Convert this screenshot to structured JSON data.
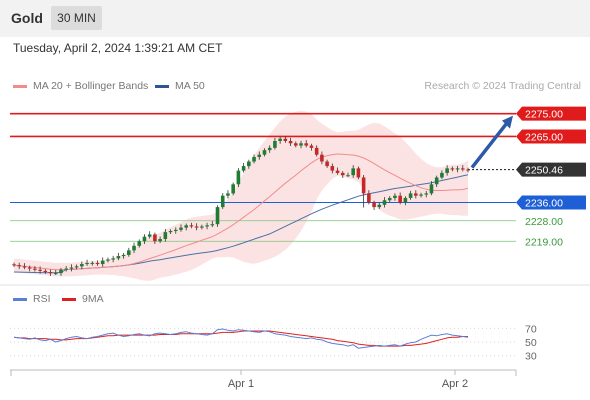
{
  "header": {
    "symbol": "Gold",
    "timeframe": "30 MIN"
  },
  "datetime": "Tuesday, April 2, 2024 1:39:21 AM CET",
  "legend": [
    {
      "label": "MA 20 + Bollinger Bands",
      "color": "#f08c8c"
    },
    {
      "label": "MA 50",
      "color": "#2f5597"
    }
  ],
  "credit": "Research © 2024 Trading Central",
  "rsi_legend": [
    {
      "label": "RSI",
      "color": "#5b7fd6"
    },
    {
      "label": "9MA",
      "color": "#e02020"
    }
  ],
  "x_axis": {
    "labels": [
      "Apr 1",
      "Apr 2"
    ]
  },
  "chart_data": [
    {
      "type": "line",
      "title": "Gold 30 MIN",
      "ylim": [
        2202,
        2281
      ],
      "levels": [
        {
          "value": 2275.0,
          "label": "2275.00",
          "color": "#e01b1b",
          "kind": "resistance"
        },
        {
          "value": 2265.0,
          "label": "2265.00",
          "color": "#e01b1b",
          "kind": "resistance"
        },
        {
          "value": 2250.46,
          "label": "2250.46",
          "color": "#333333",
          "kind": "last price"
        },
        {
          "value": 2236.0,
          "label": "2236.00",
          "color": "#1f5fd6",
          "kind": "pivot"
        },
        {
          "value": 2228.0,
          "label": "2228.00",
          "color": "#3a9a3a",
          "kind": "support"
        },
        {
          "value": 2219.0,
          "label": "2219.00",
          "color": "#3a9a3a",
          "kind": "support"
        }
      ],
      "close": [
        2208.5,
        2208.0,
        2207.5,
        2207.0,
        2206.5,
        2206.0,
        2205.5,
        2205.0,
        2205.0,
        2206.5,
        2207.0,
        2207.5,
        2208.0,
        2209.0,
        2209.5,
        2209.5,
        2209.0,
        2210.5,
        2211.0,
        2211.5,
        2212.5,
        2213.0,
        2215.0,
        2217.0,
        2219.0,
        2221.0,
        2222.0,
        2219.0,
        2220.0,
        2223.0,
        2223.5,
        2224.0,
        2225.0,
        2226.0,
        2225.5,
        2225.0,
        2225.5,
        2226.0,
        2226.5,
        2234.0,
        2239.0,
        2240.0,
        2244.0,
        2250.0,
        2252.0,
        2254.0,
        2256.0,
        2257.0,
        2259.0,
        2260.0,
        2263.0,
        2264.0,
        2263.0,
        2262.0,
        2261.0,
        2262.0,
        2261.0,
        2260.0,
        2257.0,
        2254.0,
        2252.0,
        2250.0,
        2249.0,
        2248.0,
        2248.0,
        2251.0,
        2247.0,
        2240.0,
        2236.0,
        2234.0,
        2235.0,
        2237.0,
        2238.0,
        2239.0,
        2236.0,
        2238.0,
        2240.0,
        2239.0,
        2239.5,
        2240.0,
        2244.0,
        2247.0,
        2249.0,
        2251.0,
        2250.5,
        2251.0,
        2250.5,
        2250.46
      ],
      "rsi": [
        57,
        56,
        55,
        54,
        56,
        53,
        52,
        54,
        50,
        52,
        55,
        57,
        58,
        56,
        55,
        57,
        58,
        60,
        62,
        63,
        60,
        58,
        59,
        61,
        62,
        60,
        59,
        62,
        63,
        62,
        61,
        62,
        64,
        65,
        63,
        62,
        61,
        60,
        62,
        68,
        69,
        67,
        66,
        68,
        67,
        66,
        65,
        64,
        66,
        65,
        62,
        61,
        60,
        58,
        57,
        56,
        55,
        56,
        54,
        53,
        50,
        48,
        47,
        46,
        44,
        46,
        41,
        42,
        43,
        44,
        45,
        44,
        45,
        46,
        44,
        47,
        49,
        50,
        54,
        57,
        60,
        59,
        61,
        62,
        60,
        59,
        58,
        57
      ],
      "rsi_ma": [
        57,
        56,
        56,
        55,
        55,
        55,
        55,
        54,
        54,
        53,
        53,
        54,
        55,
        55,
        55,
        56,
        57,
        58,
        59,
        59,
        60,
        60,
        60,
        60,
        60,
        60,
        60,
        60,
        61,
        61,
        61,
        61,
        62,
        62,
        62,
        62,
        62,
        62,
        62,
        63,
        64,
        64,
        64,
        65,
        66,
        66,
        66,
        66,
        66,
        66,
        65,
        64,
        63,
        62,
        61,
        60,
        59,
        58,
        57,
        56,
        55,
        54,
        52,
        51,
        50,
        49,
        47,
        46,
        45,
        45,
        44,
        44,
        44,
        44,
        44,
        45,
        45,
        46,
        47,
        48,
        50,
        52,
        54,
        56,
        57,
        57,
        58,
        58
      ],
      "rsi_ylim": [
        15,
        85
      ],
      "rsi_ticks": [
        70,
        50,
        30
      ]
    }
  ]
}
